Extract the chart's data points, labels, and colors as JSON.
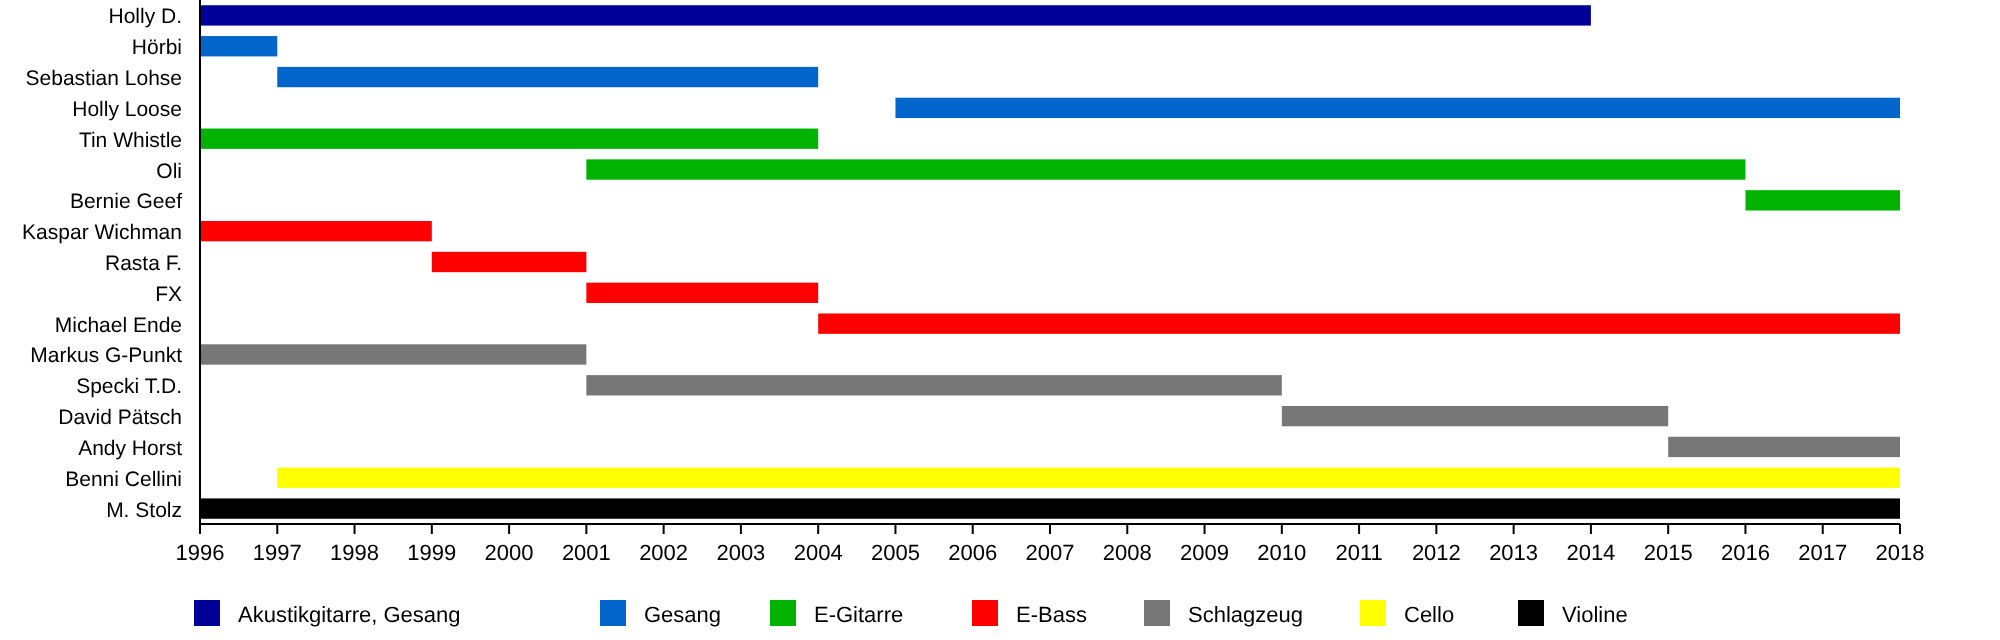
{
  "chart_data": {
    "type": "bar",
    "orientation": "horizontal",
    "legend": "bottom",
    "grid": false,
    "categories": [
      "Holly D.",
      "Hörbi",
      "Sebastian Lohse",
      "Holly Loose",
      "Tin Whistle",
      "Oli",
      "Bernie Geef",
      "Kaspar Wichman",
      "Rasta F.",
      "FX",
      "Michael Ende",
      "Markus G-Punkt",
      "Specki T.D.",
      "David Pätsch",
      "Andy Horst",
      "Benni Cellini",
      "M. Stolz"
    ],
    "xlim": [
      1996,
      2018
    ],
    "xticks": [
      1996,
      1997,
      1998,
      1999,
      2000,
      2001,
      2002,
      2003,
      2004,
      2005,
      2006,
      2007,
      2008,
      2009,
      2010,
      2011,
      2012,
      2013,
      2014,
      2015,
      2016,
      2017,
      2018
    ],
    "series": [
      {
        "name": "Akustikgitarre, Gesang",
        "color": "#000099",
        "base": [
          1996,
          null,
          null,
          null,
          null,
          null,
          null,
          null,
          null,
          null,
          null,
          null,
          null,
          null,
          null,
          null,
          null
        ],
        "values": [
          18,
          null,
          null,
          null,
          null,
          null,
          null,
          null,
          null,
          null,
          null,
          null,
          null,
          null,
          null,
          null,
          null
        ]
      },
      {
        "name": "Gesang",
        "color": "#0066cc",
        "base": [
          null,
          1996,
          1997,
          2005,
          null,
          null,
          null,
          null,
          null,
          null,
          null,
          null,
          null,
          null,
          null,
          null,
          null
        ],
        "values": [
          null,
          1,
          7,
          13,
          null,
          null,
          null,
          null,
          null,
          null,
          null,
          null,
          null,
          null,
          null,
          null,
          null
        ]
      },
      {
        "name": "E-Gitarre",
        "color": "#00b300",
        "base": [
          null,
          null,
          null,
          null,
          1996,
          2001,
          2016,
          null,
          null,
          null,
          null,
          null,
          null,
          null,
          null,
          null,
          null
        ],
        "values": [
          null,
          null,
          null,
          null,
          8,
          15,
          2,
          null,
          null,
          null,
          null,
          null,
          null,
          null,
          null,
          null,
          null
        ]
      },
      {
        "name": "E-Bass",
        "color": "#ff0000",
        "base": [
          null,
          null,
          null,
          null,
          null,
          null,
          null,
          1996,
          1999,
          2001,
          2004,
          null,
          null,
          null,
          null,
          null,
          null
        ],
        "values": [
          null,
          null,
          null,
          null,
          null,
          null,
          null,
          3,
          2,
          3,
          14,
          null,
          null,
          null,
          null,
          null,
          null
        ]
      },
      {
        "name": "Schlagzeug",
        "color": "#777777",
        "base": [
          null,
          null,
          null,
          null,
          null,
          null,
          null,
          null,
          null,
          null,
          null,
          1996,
          2001,
          2010,
          2015,
          null,
          null
        ],
        "values": [
          null,
          null,
          null,
          null,
          null,
          null,
          null,
          null,
          null,
          null,
          null,
          5,
          9,
          5,
          3,
          null,
          null
        ]
      },
      {
        "name": "Cello",
        "color": "#ffff00",
        "base": [
          null,
          null,
          null,
          null,
          null,
          null,
          null,
          null,
          null,
          null,
          null,
          null,
          null,
          null,
          null,
          1997,
          null
        ],
        "values": [
          null,
          null,
          null,
          null,
          null,
          null,
          null,
          null,
          null,
          null,
          null,
          null,
          null,
          null,
          null,
          21,
          null
        ]
      },
      {
        "name": "Violine",
        "color": "#000000",
        "base": [
          null,
          null,
          null,
          null,
          null,
          null,
          null,
          null,
          null,
          null,
          null,
          null,
          null,
          null,
          null,
          null,
          1996
        ],
        "values": [
          null,
          null,
          null,
          null,
          null,
          null,
          null,
          null,
          null,
          null,
          null,
          null,
          null,
          null,
          null,
          null,
          22
        ]
      }
    ]
  }
}
